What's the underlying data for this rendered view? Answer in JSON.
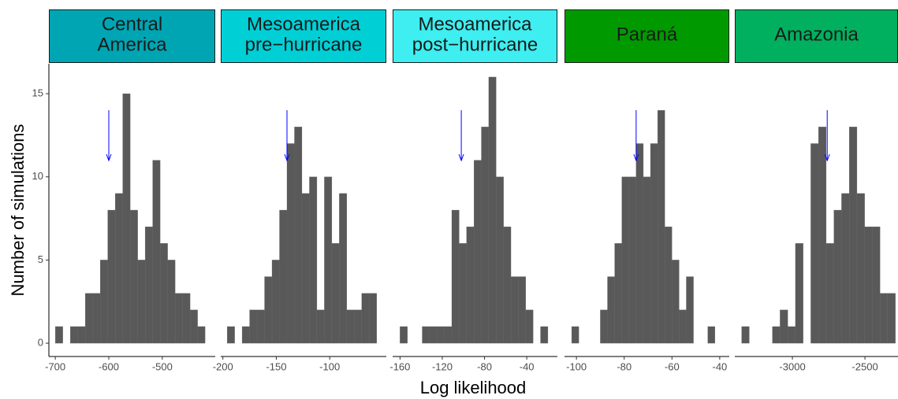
{
  "xlabel": "Log likelihood",
  "ylabel": "Number of simulations",
  "chart_data": [
    {
      "type": "histogram",
      "title": "Central\nAmerica",
      "strip_color": "#00a5b3",
      "color": "#595959",
      "bins": [
        -700,
        -686,
        -672,
        -658,
        -644,
        -630,
        -616,
        -602,
        -588,
        -574,
        -560,
        -546,
        -532,
        -518,
        -504,
        -490,
        -476,
        -462,
        -448,
        -434,
        -420
      ],
      "counts": [
        1,
        0,
        1,
        1,
        3,
        3,
        5,
        8,
        9,
        15,
        8,
        5,
        7,
        11,
        6,
        5,
        3,
        3,
        2,
        1
      ],
      "xlim": [
        -712,
        -401
      ],
      "xticks": [
        -700,
        -600,
        -500
      ],
      "ylim": [
        -0.8,
        16.8
      ],
      "yticks": [
        0,
        5,
        10,
        15
      ],
      "observed": -600,
      "observed_color": "#0000ff"
    },
    {
      "type": "histogram",
      "title": "Mesoamerica\npre−hurricane",
      "strip_color": "#00cfd6",
      "color": "#595959",
      "bins": [
        -196,
        -189,
        -182,
        -175,
        -168,
        -161,
        -154,
        -147,
        -140,
        -133,
        -126,
        -119,
        -112,
        -105,
        -98,
        -91,
        -84,
        -77,
        -70,
        -63,
        -56
      ],
      "counts": [
        1,
        0,
        1,
        2,
        2,
        4,
        5,
        8,
        12,
        13,
        9,
        10,
        2,
        10,
        6,
        9,
        2,
        2,
        3,
        3
      ],
      "xlim": [
        -202,
        -47
      ],
      "xticks": [
        -200,
        -150,
        -100
      ],
      "ylim": [
        -0.8,
        16.8
      ],
      "observed": -140,
      "observed_color": "#0000ff"
    },
    {
      "type": "histogram",
      "title": "Mesoamerica\npost−hurricane",
      "strip_color": "#3eeef0",
      "color": "#595959",
      "bins": [
        -160,
        -153,
        -146,
        -139,
        -132,
        -125,
        -118,
        -111,
        -104,
        -97,
        -90,
        -83,
        -76,
        -69,
        -62,
        -55,
        -48,
        -41,
        -34,
        -27,
        -20
      ],
      "counts": [
        1,
        0,
        0,
        1,
        1,
        1,
        1,
        8,
        6,
        7,
        11,
        13,
        16,
        10,
        7,
        4,
        4,
        2,
        0,
        1
      ],
      "xlim": [
        -167,
        -11
      ],
      "xticks": [
        -160,
        -120,
        -80,
        -40
      ],
      "ylim": [
        -0.8,
        16.8
      ],
      "observed": -102,
      "observed_color": "#0000ff"
    },
    {
      "type": "histogram",
      "title": "Paraná",
      "strip_color": "#009a00",
      "color": "#595959",
      "bins": [
        -102,
        -99,
        -96,
        -93,
        -90,
        -87,
        -84,
        -81,
        -78,
        -75,
        -72,
        -69,
        -66,
        -63,
        -60,
        -57,
        -54,
        -51,
        -48,
        -45,
        -42
      ],
      "counts": [
        1,
        0,
        0,
        0,
        2,
        4,
        6,
        10,
        10,
        12,
        10,
        12,
        14,
        7,
        5,
        2,
        4,
        0,
        0,
        1
      ],
      "xlim": [
        -105,
        -36
      ],
      "xticks": [
        -100,
        -80,
        -60,
        -40
      ],
      "ylim": [
        -0.8,
        16.8
      ],
      "observed": -75,
      "observed_color": "#0000ff"
    },
    {
      "type": "histogram",
      "title": "Amazonia",
      "strip_color": "#00b05e",
      "color": "#595959",
      "bins": [
        -3350,
        -3297,
        -3244,
        -3191,
        -3138,
        -3085,
        -3032,
        -2979,
        -2926,
        -2873,
        -2820,
        -2767,
        -2714,
        -2661,
        -2608,
        -2555,
        -2502,
        -2449,
        -2396,
        -2343,
        -2290
      ],
      "counts": [
        1,
        0,
        0,
        0,
        1,
        2,
        1,
        6,
        0,
        12,
        13,
        6,
        8,
        9,
        13,
        9,
        7,
        7,
        3,
        3
      ],
      "xlim": [
        -3397,
        -2272
      ],
      "xticks": [
        -3000,
        -2500
      ],
      "ylim": [
        -0.8,
        16.8
      ],
      "observed": -2760,
      "observed_color": "#0000ff"
    }
  ]
}
